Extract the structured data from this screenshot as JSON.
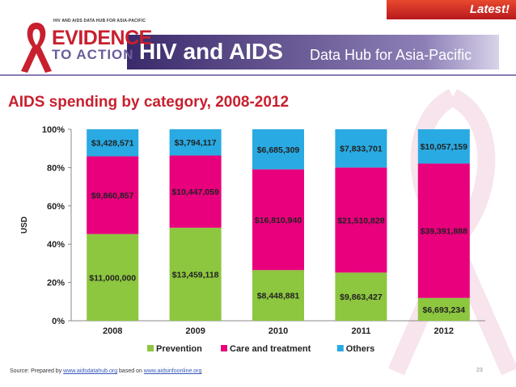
{
  "header": {
    "latest": "Latest!",
    "logo_small": "HIV AND AIDS DATA HUB FOR ASIA-PACIFIC",
    "logo_evidence": "EVIDENCE",
    "logo_action": "TO ACTION",
    "title_main": "HIV and AIDS",
    "title_sub": "Data Hub for Asia-Pacific"
  },
  "chart_title": "AIDS spending by category, 2008-2012",
  "colors": {
    "prevention": "#8dc63f",
    "care": "#e8007d",
    "others": "#29aae2",
    "title": "#c8202f",
    "header_purple": "#3b2a6b"
  },
  "chart_data": {
    "type": "bar",
    "stacked": "percent",
    "categories": [
      "2008",
      "2009",
      "2010",
      "2011",
      "2012"
    ],
    "series": [
      {
        "name": "Prevention",
        "values": [
          11000000,
          13459118,
          8448881,
          9863427,
          6693234
        ],
        "labels": [
          "$11,000,000",
          "$13,459,118",
          "$8,448,881",
          "$9,863,427",
          "$6,693,234"
        ]
      },
      {
        "name": "Care and treatment",
        "values": [
          9860857,
          10447059,
          16810940,
          21510828,
          39391888
        ],
        "labels": [
          "$9,860,857",
          "$10,447,059",
          "$16,810,940",
          "$21,510,828",
          "$39,391,888"
        ]
      },
      {
        "name": "Others",
        "values": [
          3428571,
          3794117,
          6685309,
          7833701,
          10057159
        ],
        "labels": [
          "$3,428,571",
          "$3,794,117",
          "$6,685,309",
          "$7,833,701",
          "$10,057,159"
        ]
      }
    ],
    "ylabel": "USD",
    "yticks": [
      "0%",
      "20%",
      "40%",
      "60%",
      "80%",
      "100%"
    ],
    "ylim": [
      0,
      100
    ],
    "legend": "bottom",
    "grid": false
  },
  "footer": {
    "source_prefix": "Source: Prepared by ",
    "source_link1": "www.aidsdatahub.org",
    "source_mid": " based on ",
    "source_link2": "www.aidsinfoonline.org",
    "page": "23"
  }
}
